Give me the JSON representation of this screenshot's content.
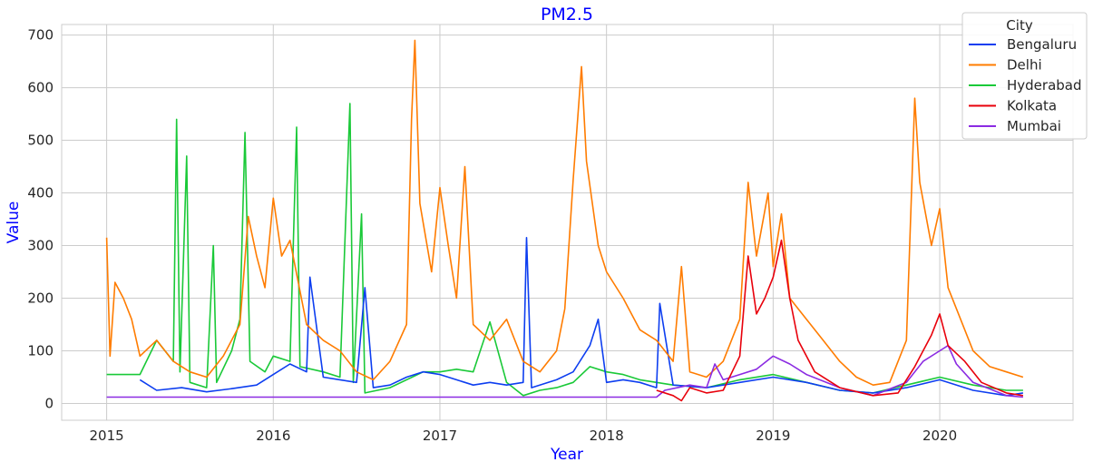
{
  "chart_data": {
    "type": "line",
    "title": "PM2.5",
    "xlabel": "Year",
    "ylabel": "Value",
    "xlim": [
      2015.0,
      2020.5
    ],
    "ylim": [
      0,
      700
    ],
    "xticks": [
      2015,
      2016,
      2017,
      2018,
      2019,
      2020
    ],
    "yticks": [
      0,
      100,
      200,
      300,
      400,
      500,
      600,
      700
    ],
    "grid": true,
    "legend": {
      "title": "City",
      "placement": "top-right"
    },
    "colors": {
      "title": "#0000ff",
      "axis_label": "#0000ff"
    },
    "series": [
      {
        "name": "Bengaluru",
        "color": "#0d3ef0",
        "points": [
          [
            2015.2,
            45
          ],
          [
            2015.3,
            25
          ],
          [
            2015.45,
            30
          ],
          [
            2015.6,
            22
          ],
          [
            2015.75,
            28
          ],
          [
            2015.9,
            35
          ],
          [
            2016.0,
            55
          ],
          [
            2016.1,
            75
          ],
          [
            2016.2,
            60
          ],
          [
            2016.22,
            240
          ],
          [
            2016.3,
            50
          ],
          [
            2016.4,
            45
          ],
          [
            2016.5,
            40
          ],
          [
            2016.55,
            220
          ],
          [
            2016.6,
            30
          ],
          [
            2016.7,
            35
          ],
          [
            2016.8,
            50
          ],
          [
            2016.9,
            60
          ],
          [
            2017.0,
            55
          ],
          [
            2017.1,
            45
          ],
          [
            2017.2,
            35
          ],
          [
            2017.3,
            40
          ],
          [
            2017.4,
            35
          ],
          [
            2017.5,
            40
          ],
          [
            2017.52,
            315
          ],
          [
            2017.55,
            30
          ],
          [
            2017.7,
            45
          ],
          [
            2017.8,
            60
          ],
          [
            2017.9,
            110
          ],
          [
            2017.95,
            160
          ],
          [
            2018.0,
            40
          ],
          [
            2018.1,
            45
          ],
          [
            2018.2,
            40
          ],
          [
            2018.3,
            30
          ],
          [
            2018.32,
            190
          ],
          [
            2018.4,
            35
          ],
          [
            2018.6,
            30
          ],
          [
            2018.8,
            40
          ],
          [
            2019.0,
            50
          ],
          [
            2019.2,
            40
          ],
          [
            2019.4,
            25
          ],
          [
            2019.6,
            20
          ],
          [
            2019.8,
            30
          ],
          [
            2020.0,
            45
          ],
          [
            2020.2,
            25
          ],
          [
            2020.4,
            15
          ],
          [
            2020.5,
            20
          ]
        ]
      },
      {
        "name": "Delhi",
        "color": "#ff7c00",
        "points": [
          [
            2015.0,
            315
          ],
          [
            2015.02,
            90
          ],
          [
            2015.05,
            230
          ],
          [
            2015.1,
            200
          ],
          [
            2015.15,
            160
          ],
          [
            2015.2,
            90
          ],
          [
            2015.3,
            120
          ],
          [
            2015.4,
            80
          ],
          [
            2015.5,
            60
          ],
          [
            2015.6,
            50
          ],
          [
            2015.7,
            90
          ],
          [
            2015.8,
            150
          ],
          [
            2015.85,
            355
          ],
          [
            2015.9,
            280
          ],
          [
            2015.95,
            220
          ],
          [
            2016.0,
            390
          ],
          [
            2016.05,
            280
          ],
          [
            2016.1,
            310
          ],
          [
            2016.2,
            150
          ],
          [
            2016.3,
            120
          ],
          [
            2016.4,
            100
          ],
          [
            2016.5,
            60
          ],
          [
            2016.6,
            45
          ],
          [
            2016.7,
            80
          ],
          [
            2016.8,
            150
          ],
          [
            2016.83,
            540
          ],
          [
            2016.85,
            690
          ],
          [
            2016.88,
            380
          ],
          [
            2016.95,
            250
          ],
          [
            2017.0,
            410
          ],
          [
            2017.05,
            300
          ],
          [
            2017.1,
            200
          ],
          [
            2017.15,
            450
          ],
          [
            2017.2,
            150
          ],
          [
            2017.3,
            120
          ],
          [
            2017.4,
            160
          ],
          [
            2017.5,
            80
          ],
          [
            2017.6,
            60
          ],
          [
            2017.7,
            100
          ],
          [
            2017.75,
            180
          ],
          [
            2017.8,
            425
          ],
          [
            2017.85,
            640
          ],
          [
            2017.88,
            460
          ],
          [
            2017.95,
            300
          ],
          [
            2018.0,
            250
          ],
          [
            2018.1,
            200
          ],
          [
            2018.2,
            140
          ],
          [
            2018.3,
            120
          ],
          [
            2018.4,
            80
          ],
          [
            2018.45,
            260
          ],
          [
            2018.5,
            60
          ],
          [
            2018.6,
            50
          ],
          [
            2018.7,
            80
          ],
          [
            2018.8,
            160
          ],
          [
            2018.85,
            420
          ],
          [
            2018.9,
            280
          ],
          [
            2018.97,
            400
          ],
          [
            2019.0,
            260
          ],
          [
            2019.05,
            360
          ],
          [
            2019.1,
            200
          ],
          [
            2019.2,
            160
          ],
          [
            2019.3,
            120
          ],
          [
            2019.4,
            80
          ],
          [
            2019.5,
            50
          ],
          [
            2019.6,
            35
          ],
          [
            2019.7,
            40
          ],
          [
            2019.8,
            120
          ],
          [
            2019.85,
            580
          ],
          [
            2019.88,
            420
          ],
          [
            2019.95,
            300
          ],
          [
            2020.0,
            370
          ],
          [
            2020.05,
            220
          ],
          [
            2020.1,
            180
          ],
          [
            2020.2,
            100
          ],
          [
            2020.3,
            70
          ],
          [
            2020.4,
            60
          ],
          [
            2020.5,
            50
          ]
        ]
      },
      {
        "name": "Hyderabad",
        "color": "#1ac938",
        "points": [
          [
            2015.0,
            55
          ],
          [
            2015.2,
            55
          ],
          [
            2015.3,
            120
          ],
          [
            2015.4,
            80
          ],
          [
            2015.42,
            540
          ],
          [
            2015.44,
            60
          ],
          [
            2015.48,
            470
          ],
          [
            2015.5,
            40
          ],
          [
            2015.6,
            30
          ],
          [
            2015.64,
            300
          ],
          [
            2015.66,
            40
          ],
          [
            2015.75,
            100
          ],
          [
            2015.8,
            160
          ],
          [
            2015.83,
            515
          ],
          [
            2015.86,
            80
          ],
          [
            2015.95,
            60
          ],
          [
            2016.0,
            90
          ],
          [
            2016.1,
            80
          ],
          [
            2016.14,
            525
          ],
          [
            2016.16,
            70
          ],
          [
            2016.3,
            60
          ],
          [
            2016.4,
            50
          ],
          [
            2016.46,
            570
          ],
          [
            2016.48,
            40
          ],
          [
            2016.53,
            360
          ],
          [
            2016.55,
            20
          ],
          [
            2016.7,
            30
          ],
          [
            2016.9,
            60
          ],
          [
            2017.0,
            60
          ],
          [
            2017.1,
            65
          ],
          [
            2017.2,
            60
          ],
          [
            2017.3,
            155
          ],
          [
            2017.4,
            40
          ],
          [
            2017.5,
            15
          ],
          [
            2017.6,
            25
          ],
          [
            2017.7,
            30
          ],
          [
            2017.8,
            40
          ],
          [
            2017.9,
            70
          ],
          [
            2018.0,
            60
          ],
          [
            2018.1,
            55
          ],
          [
            2018.2,
            45
          ],
          [
            2018.3,
            40
          ],
          [
            2018.4,
            35
          ],
          [
            2018.6,
            30
          ],
          [
            2018.8,
            45
          ],
          [
            2019.0,
            55
          ],
          [
            2019.2,
            40
          ],
          [
            2019.4,
            25
          ],
          [
            2019.6,
            20
          ],
          [
            2019.8,
            35
          ],
          [
            2020.0,
            50
          ],
          [
            2020.2,
            35
          ],
          [
            2020.4,
            25
          ],
          [
            2020.5,
            25
          ]
        ]
      },
      {
        "name": "Kolkata",
        "color": "#e8000b",
        "points": [
          [
            2018.3,
            25
          ],
          [
            2018.4,
            15
          ],
          [
            2018.45,
            5
          ],
          [
            2018.5,
            30
          ],
          [
            2018.6,
            20
          ],
          [
            2018.7,
            25
          ],
          [
            2018.8,
            90
          ],
          [
            2018.85,
            280
          ],
          [
            2018.9,
            170
          ],
          [
            2018.95,
            200
          ],
          [
            2019.0,
            240
          ],
          [
            2019.05,
            310
          ],
          [
            2019.1,
            200
          ],
          [
            2019.15,
            120
          ],
          [
            2019.25,
            60
          ],
          [
            2019.4,
            30
          ],
          [
            2019.6,
            15
          ],
          [
            2019.75,
            20
          ],
          [
            2019.85,
            70
          ],
          [
            2019.95,
            130
          ],
          [
            2020.0,
            170
          ],
          [
            2020.05,
            110
          ],
          [
            2020.15,
            80
          ],
          [
            2020.25,
            40
          ],
          [
            2020.4,
            20
          ],
          [
            2020.5,
            15
          ]
        ]
      },
      {
        "name": "Mumbai",
        "color": "#8b2be2",
        "points": [
          [
            2015.0,
            12
          ],
          [
            2016.5,
            12
          ],
          [
            2017.0,
            12
          ],
          [
            2017.5,
            12
          ],
          [
            2018.0,
            12
          ],
          [
            2018.3,
            12
          ],
          [
            2018.35,
            25
          ],
          [
            2018.5,
            35
          ],
          [
            2018.6,
            30
          ],
          [
            2018.65,
            75
          ],
          [
            2018.7,
            45
          ],
          [
            2018.8,
            55
          ],
          [
            2018.9,
            65
          ],
          [
            2019.0,
            90
          ],
          [
            2019.1,
            75
          ],
          [
            2019.2,
            55
          ],
          [
            2019.4,
            30
          ],
          [
            2019.6,
            15
          ],
          [
            2019.8,
            40
          ],
          [
            2019.9,
            80
          ],
          [
            2020.0,
            100
          ],
          [
            2020.05,
            110
          ],
          [
            2020.1,
            75
          ],
          [
            2020.2,
            40
          ],
          [
            2020.4,
            15
          ],
          [
            2020.5,
            12
          ]
        ]
      }
    ]
  }
}
